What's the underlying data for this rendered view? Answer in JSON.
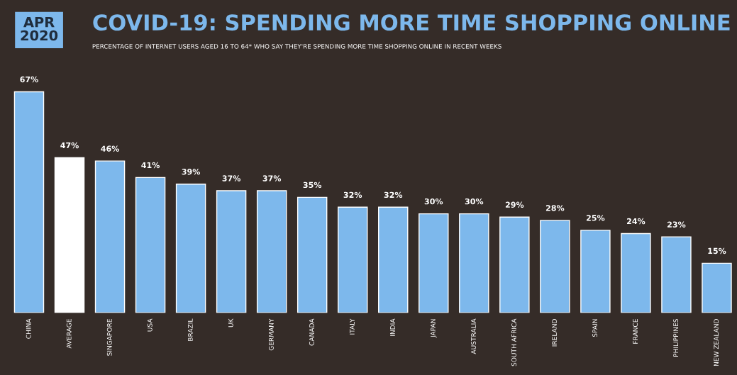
{
  "chart_data": {
    "type": "bar",
    "title": "COVID-19: SPENDING MORE TIME SHOPPING ONLINE",
    "subtitle": "PERCENTAGE OF INTERNET USERS AGED 16 TO 64* WHO SAY THEY'RE SPENDING MORE TIME SHOPPING ONLINE IN RECENT WEEKS",
    "annotations": [
      "APR\n2020"
    ],
    "categories": [
      "CHINA",
      "AVERAGE",
      "SINGAPORE",
      "USA",
      "BRAZIL",
      "UK",
      "GERMANY",
      "CANADA",
      "ITALY",
      "INDIA",
      "JAPAN",
      "AUSTRALIA",
      "SOUTH AFRICA",
      "IRELAND",
      "SPAIN",
      "FRANCE",
      "PHILIPPINES",
      "NEW ZEALAND"
    ],
    "values": [
      67,
      47,
      46,
      41,
      39,
      37,
      37,
      35,
      32,
      32,
      30,
      30,
      29,
      28,
      25,
      24,
      23,
      15
    ],
    "value_labels": [
      "67%",
      "47%",
      "46%",
      "41%",
      "39%",
      "37%",
      "37%",
      "35%",
      "32%",
      "32%",
      "30%",
      "30%",
      "29%",
      "28%",
      "25%",
      "24%",
      "23%",
      "15%"
    ],
    "colors": [
      "#7db8ec",
      "#ffffff",
      "#7db8ec",
      "#7db8ec",
      "#7db8ec",
      "#7db8ec",
      "#7db8ec",
      "#7db8ec",
      "#7db8ec",
      "#7db8ec",
      "#7db8ec",
      "#7db8ec",
      "#7db8ec",
      "#7db8ec",
      "#7db8ec",
      "#7db8ec",
      "#7db8ec",
      "#7db8ec"
    ],
    "grid": false,
    "legend": false
  }
}
